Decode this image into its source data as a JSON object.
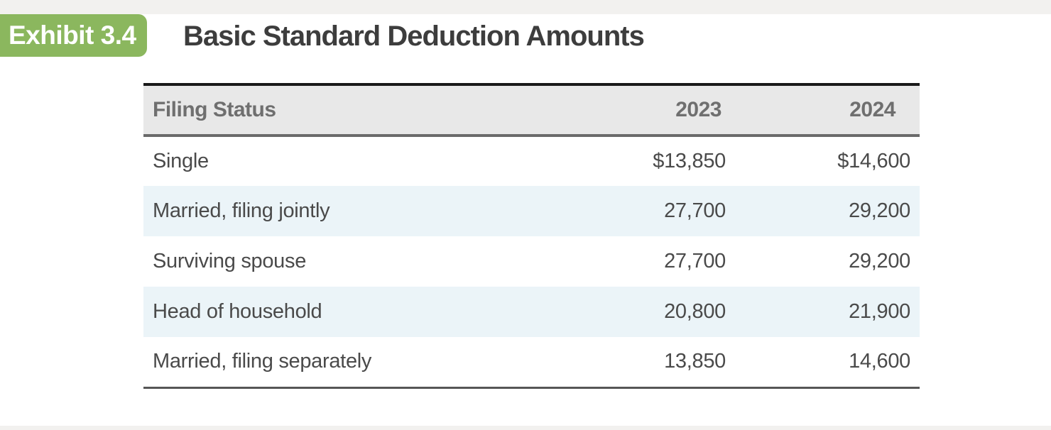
{
  "exhibit": {
    "badge": "Exhibit 3.4",
    "title": "Basic Standard Deduction Amounts"
  },
  "table": {
    "columns": [
      "Filing Status",
      "2023",
      "2024"
    ],
    "rows": [
      [
        "Single",
        "$13,850",
        "$14,600"
      ],
      [
        "Married, filing jointly",
        "27,700",
        "29,200"
      ],
      [
        "Surviving spouse",
        "27,700",
        "29,200"
      ],
      [
        "Head of household",
        "20,800",
        "21,900"
      ],
      [
        "Married, filing separately",
        "13,850",
        "14,600"
      ]
    ]
  },
  "colors": {
    "badge_green": "#8bb75e",
    "title_text": "#3d3d3d",
    "header_bg": "#e8e8e8",
    "header_text": "#6f6f6f",
    "body_text": "#4a4a4a",
    "row_alt_bg": "#ebf4f8",
    "strip_bg": "#f2f1ef",
    "border_dark": "#191919",
    "border_gray": "#6a6a6a"
  }
}
